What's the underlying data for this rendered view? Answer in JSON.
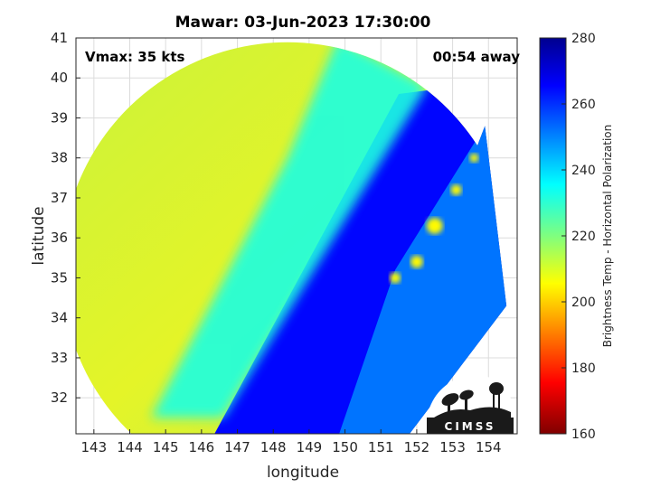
{
  "chart_data": {
    "type": "heatmap",
    "title": "Mawar: 03-Jun-2023 17:30:00",
    "xlabel": "longitude",
    "ylabel": "latitude",
    "xlim": [
      142.5,
      154.8
    ],
    "ylim": [
      31.1,
      41.0
    ],
    "x_ticks": [
      "143",
      "144",
      "145",
      "146",
      "147",
      "148",
      "149",
      "150",
      "151",
      "152",
      "153",
      "154"
    ],
    "y_ticks": [
      "32",
      "33",
      "34",
      "35",
      "36",
      "37",
      "38",
      "39",
      "40",
      "41"
    ],
    "grid": true,
    "annotations": {
      "vmax": "Vmax: 35 kts",
      "time_away": "00:54 away"
    },
    "colorbar": {
      "label": "Brightness Temp - Horizontal Polarization",
      "range": [
        160,
        280
      ],
      "ticks": [
        "280",
        "260",
        "240",
        "220",
        "200",
        "180",
        "160"
      ],
      "colormap": "jet"
    },
    "swath": {
      "center": [
        148.4,
        35.2
      ],
      "radius_deg_lon": 6.3
    },
    "regions": [
      {
        "name": "warm-band",
        "value": 265
      },
      {
        "name": "cold-west",
        "value": 215
      },
      {
        "name": "inner-band",
        "value": 232
      },
      {
        "name": "east-swath",
        "value": 252
      },
      {
        "name": "convective-cells",
        "value": 205
      }
    ],
    "logo": "CIMSS"
  }
}
